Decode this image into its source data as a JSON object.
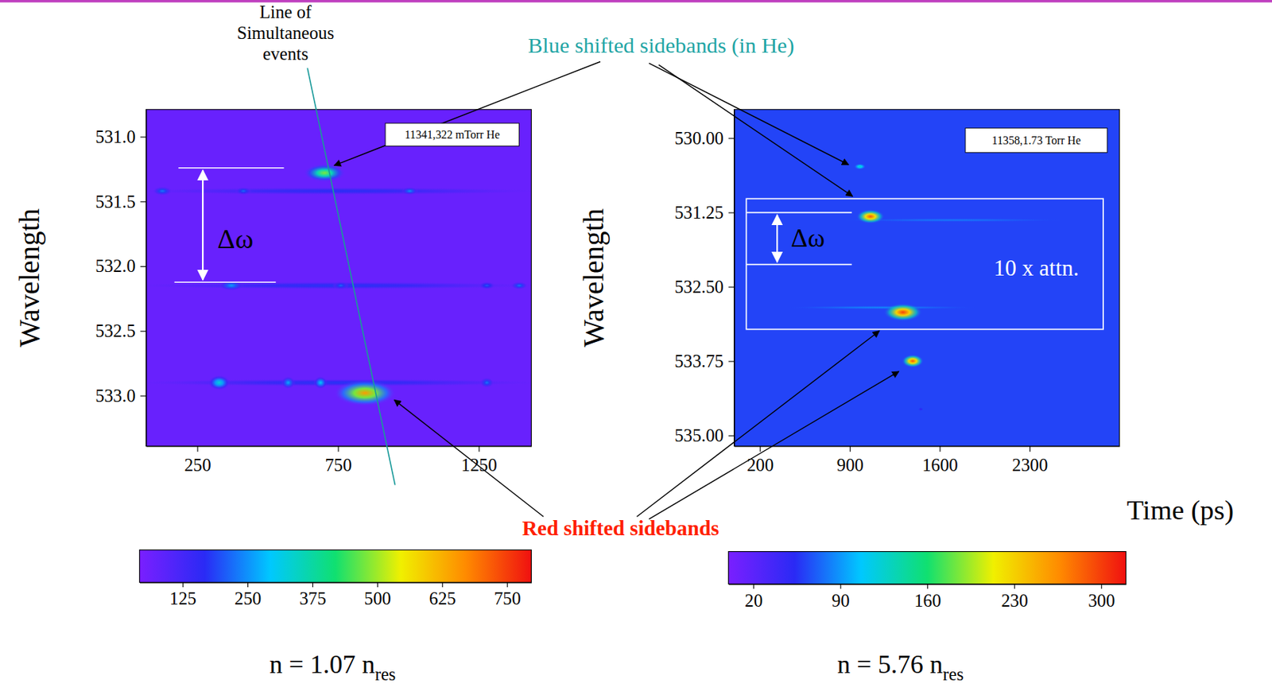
{
  "chart_data": [
    {
      "type": "heatmap",
      "title": "11341,322 mTorr He",
      "y_label": "Wavelength",
      "xlim": [
        68,
        1437
      ],
      "xticks": [
        250,
        750,
        1250
      ],
      "ylim": [
        530.79,
        533.39
      ],
      "yticks": [
        {
          "value": 531,
          "label": "531.0"
        },
        531.5,
        {
          "value": 532,
          "label": "532.0"
        },
        532.5,
        {
          "value": 533,
          "label": "533.0"
        }
      ],
      "background": 70,
      "spots": {
        "x": [
          750,
          750,
          750,
          126,
          414,
          1005,
          371,
          760,
          1279,
          1394,
          328,
          573,
          688,
          1279,
          702,
          846
        ],
        "y": [
          531.42,
          532.15,
          532.9,
          531.42,
          531.42,
          531.42,
          532.15,
          532.15,
          532.15,
          532.15,
          532.9,
          532.9,
          532.9,
          532.9,
          531.28,
          532.98
        ],
        "x_size": [
          1500,
          1500,
          1500,
          70,
          60,
          60,
          90,
          60,
          60,
          60,
          80,
          50,
          50,
          50,
          150,
          220
        ],
        "y_size": [
          0.06,
          0.06,
          0.06,
          0.07,
          0.06,
          0.06,
          0.08,
          0.06,
          0.06,
          0.06,
          0.12,
          0.1,
          0.1,
          0.08,
          0.14,
          0.2
        ],
        "values": [
          170,
          175,
          175,
          230,
          220,
          250,
          260,
          220,
          210,
          230,
          330,
          270,
          300,
          230,
          480,
          650
        ]
      },
      "colorbar": {
        "range": [
          42,
          797
        ],
        "ticks": [
          125,
          250,
          375,
          500,
          625,
          750
        ]
      },
      "caption": {
        "text": "n = 1.07 n",
        "subscript": "res"
      },
      "annotations": {
        "delta": "Δω",
        "line_label": [
          "Line of",
          "Simultaneous",
          "events"
        ]
      }
    },
    {
      "type": "heatmap",
      "title": "11358,1.73 Torr He",
      "y_label": "Wavelength",
      "x_label": "Time (ps)",
      "xlim": [
        0,
        3000
      ],
      "xticks": [
        200,
        900,
        1600,
        2300
      ],
      "ylim": [
        529.52,
        535.18
      ],
      "yticks": [
        {
          "value": 530,
          "label": "530.00"
        },
        531.25,
        {
          "value": 532.5,
          "label": "532.50"
        },
        533.75,
        {
          "value": 535,
          "label": "535.00"
        }
      ],
      "background": 62,
      "spots": {
        "x": [
          1700,
          1150,
          979,
          1061,
          1314,
          1390,
          1453
        ],
        "y": [
          531.38,
          532.85,
          530.48,
          531.32,
          532.93,
          533.75,
          534.56
        ],
        "x_size": [
          1800,
          1500,
          90,
          220,
          300,
          170,
          40
        ],
        "y_size": [
          0.06,
          0.06,
          0.1,
          0.24,
          0.3,
          0.22,
          0.06
        ],
        "values": [
          80,
          85,
          130,
          290,
          300,
          290,
          50
        ]
      },
      "colorbar": {
        "range": [
          0,
          320
        ],
        "ticks": [
          20,
          90,
          160,
          230,
          300
        ]
      },
      "caption": {
        "text": "n = 5.76 n",
        "subscript": "res"
      },
      "annotations": {
        "delta": "Δω",
        "attenuation": "10 x attn."
      }
    }
  ],
  "annotations": {
    "blue_sidebands": "Blue shifted sidebands (in He)",
    "red_sidebands": "Red shifted sidebands"
  }
}
